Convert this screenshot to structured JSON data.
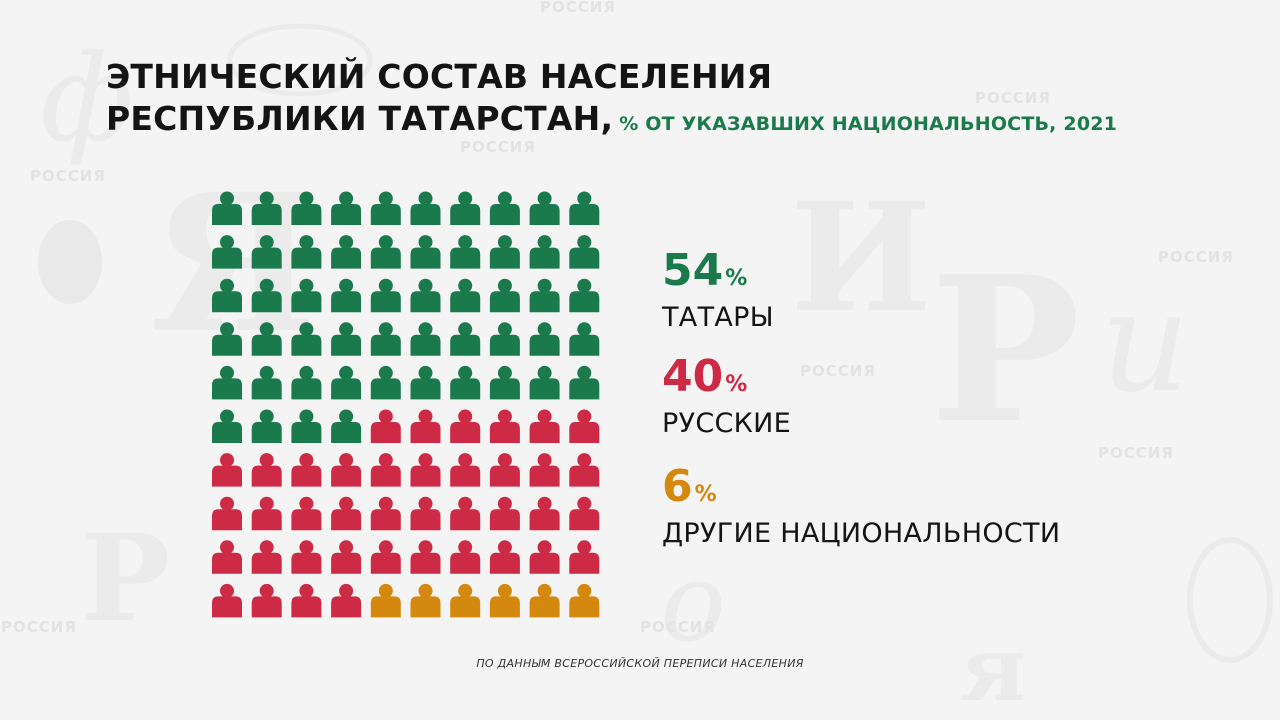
{
  "title": {
    "line1": "ЭТНИЧЕСКИЙ СОСТАВ НАСЕЛЕНИЯ",
    "line2": "РЕСПУБЛИКИ ТАТАРСТАН,",
    "subtitle": "% ОТ УКАЗАВШИХ НАЦИОНАЛЬНОСТЬ, 2021"
  },
  "background_watermark": "РОССИЯ",
  "chart_data": {
    "type": "pictogram",
    "grid": {
      "rows": 10,
      "columns": 10
    },
    "units_total": 100,
    "series": [
      {
        "name": "ТАТАРЫ",
        "percent_value": "54",
        "value": 54,
        "color": "#1b7a4c"
      },
      {
        "name": "РУССКИЕ",
        "percent_value": "40",
        "value": 40,
        "color": "#cc2a45"
      },
      {
        "name": "ДРУГИЕ НАЦИОНАЛЬНОСТИ",
        "percent_value": "6",
        "value": 6,
        "color": "#d4890e"
      }
    ],
    "percent_sign": "%",
    "legend_position": "right"
  },
  "source": "ПО ДАННЫМ ВСЕРОССИЙСКОЙ ПЕРЕПИСИ НАСЕЛЕНИЯ",
  "colors": {
    "background": "#f4f4f4",
    "title": "#141414",
    "subtitle": "#1b7a4c"
  }
}
